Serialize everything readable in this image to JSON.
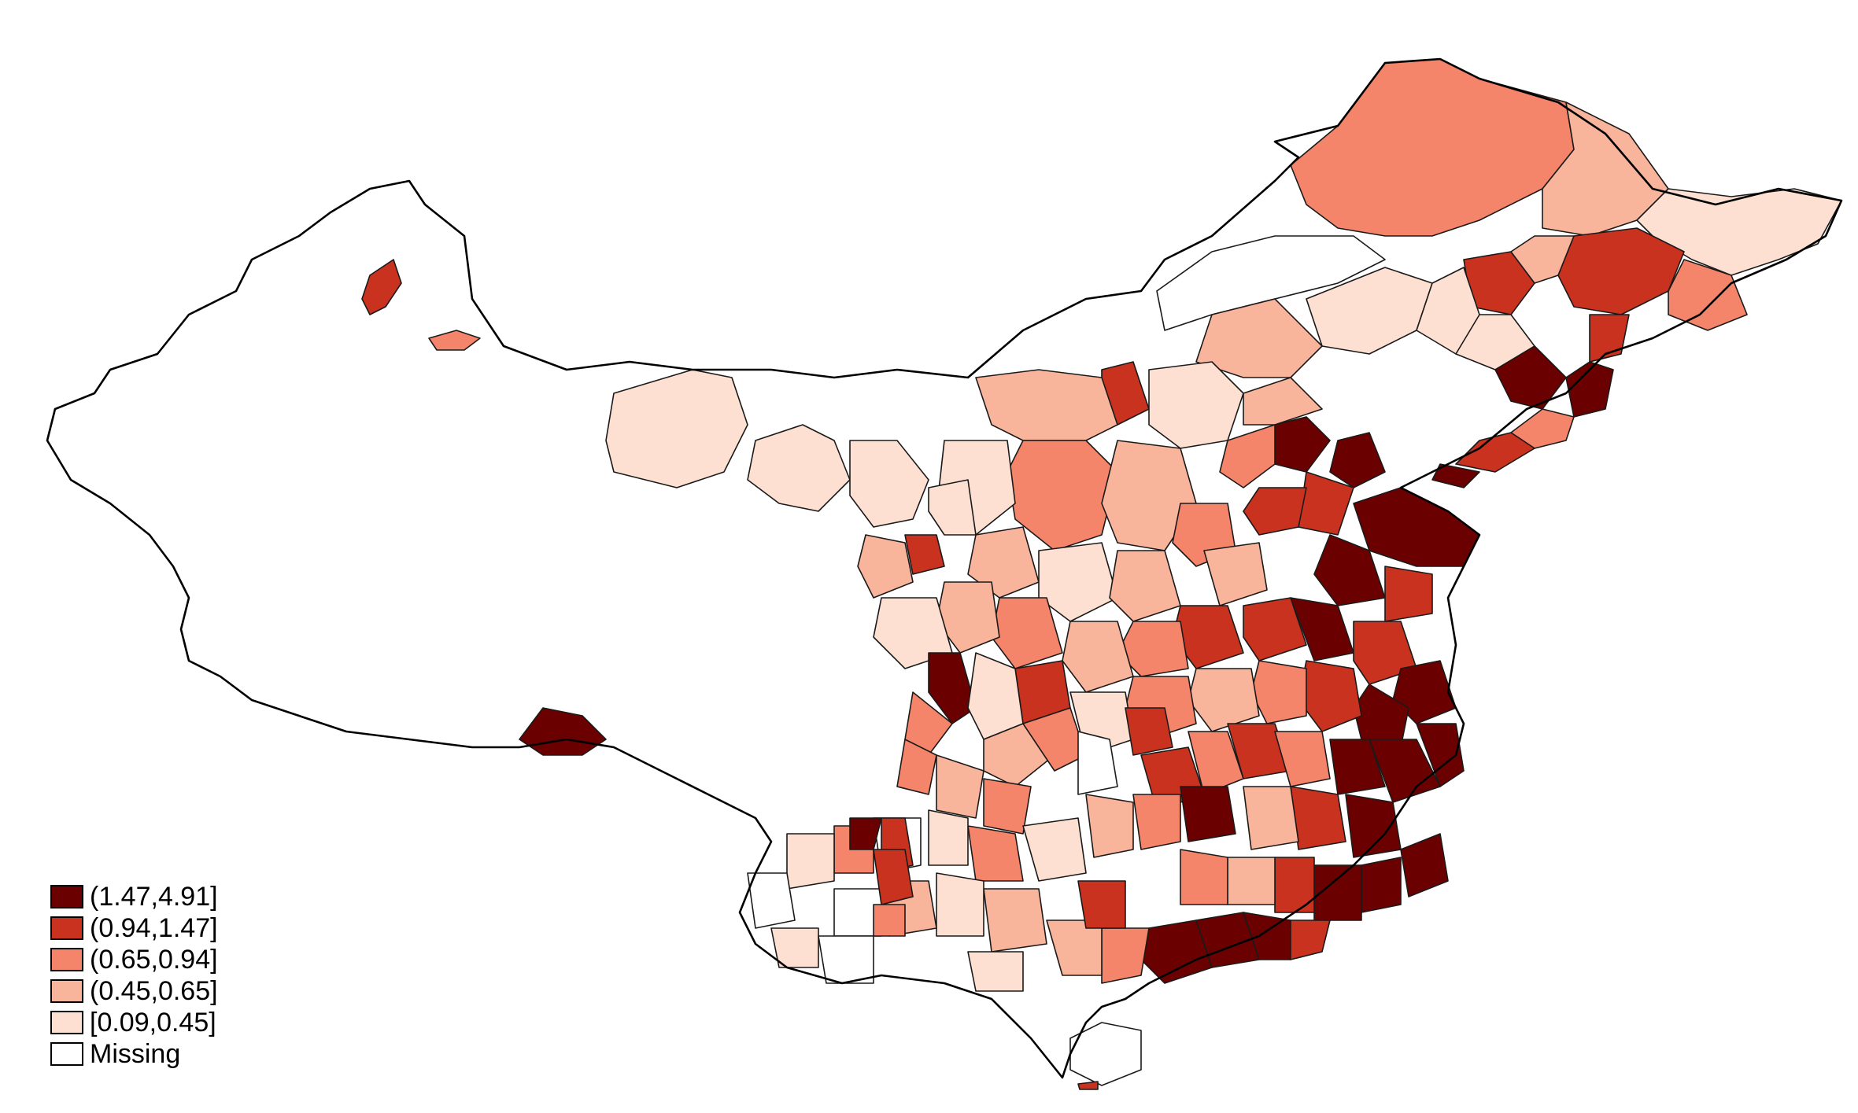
{
  "legend": {
    "title": "",
    "classes": [
      {
        "label": "(1.47,4.91]",
        "color": "#6b0000",
        "min": 1.47,
        "max": 4.91
      },
      {
        "label": "(0.94,1.47]",
        "color": "#c8321e",
        "min": 0.94,
        "max": 1.47
      },
      {
        "label": "(0.65,0.94]",
        "color": "#f5856a",
        "min": 0.65,
        "max": 0.94
      },
      {
        "label": "(0.45,0.65]",
        "color": "#f9b49c",
        "min": 0.45,
        "max": 0.65
      },
      {
        "label": "[0.09,0.45]",
        "color": "#fde0d2",
        "min": 0.09,
        "max": 0.45
      },
      {
        "label": "Missing",
        "color": "#ffffff"
      }
    ]
  },
  "map": {
    "type": "choropleth",
    "color_classes_order": [
      "(1.47,4.91]",
      "(0.94,1.47]",
      "(0.65,0.94]",
      "(0.45,0.65]",
      "[0.09,0.45]",
      "Missing"
    ]
  }
}
